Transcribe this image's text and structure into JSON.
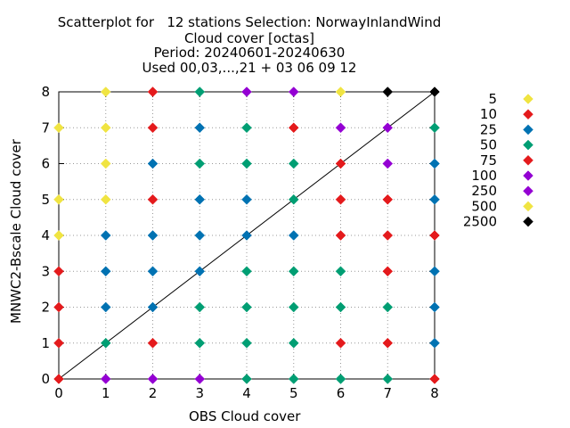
{
  "chart_data": {
    "type": "scatter",
    "title": [
      "Scatterplot for   12 stations Selection: NorwayInlandWind",
      "Cloud cover [octas]",
      "Period: 20240601-20240630",
      "Used 00,03,...,21 + 03 06 09 12"
    ],
    "xlabel": "OBS Cloud cover",
    "ylabel": "MNWC2-Bscale Cloud cover",
    "xlim": [
      0,
      8
    ],
    "ylim": [
      0,
      8
    ],
    "xticks": [
      "0",
      "1",
      "2",
      "3",
      "4",
      "5",
      "6",
      "7",
      "8"
    ],
    "yticks": [
      "0",
      "1",
      "2",
      "3",
      "4",
      "5",
      "6",
      "7",
      "8"
    ],
    "grid": true,
    "diagonal_line": true,
    "legend_position": "right",
    "series": [
      {
        "name": "5",
        "color": "#f0e442",
        "points": [
          [
            0,
            4
          ],
          [
            0,
            5
          ],
          [
            0,
            7
          ],
          [
            1,
            5
          ],
          [
            1,
            6
          ],
          [
            1,
            7
          ],
          [
            1,
            8
          ],
          [
            6,
            8
          ]
        ]
      },
      {
        "name": "10",
        "color": "#e41a1c",
        "points": [
          [
            0,
            1
          ],
          [
            0,
            2
          ],
          [
            0,
            3
          ],
          [
            2,
            1
          ],
          [
            2,
            5
          ],
          [
            2,
            7
          ],
          [
            2,
            8
          ],
          [
            5,
            7
          ],
          [
            6,
            1
          ],
          [
            6,
            4
          ],
          [
            6,
            5
          ],
          [
            7,
            1
          ],
          [
            7,
            3
          ],
          [
            7,
            4
          ],
          [
            7,
            5
          ],
          [
            8,
            4
          ]
        ]
      },
      {
        "name": "25",
        "color": "#0072b2",
        "points": [
          [
            1,
            2
          ],
          [
            1,
            3
          ],
          [
            1,
            4
          ],
          [
            2,
            2
          ],
          [
            2,
            3
          ],
          [
            2,
            4
          ],
          [
            2,
            6
          ],
          [
            3,
            3
          ],
          [
            3,
            4
          ],
          [
            3,
            5
          ],
          [
            3,
            7
          ],
          [
            4,
            4
          ],
          [
            4,
            5
          ],
          [
            5,
            4
          ],
          [
            8,
            1
          ],
          [
            8,
            2
          ],
          [
            8,
            3
          ],
          [
            8,
            5
          ],
          [
            8,
            6
          ]
        ]
      },
      {
        "name": "50",
        "color": "#009e73",
        "points": [
          [
            1,
            1
          ],
          [
            3,
            1
          ],
          [
            3,
            2
          ],
          [
            3,
            6
          ],
          [
            3,
            8
          ],
          [
            4,
            0
          ],
          [
            4,
            1
          ],
          [
            4,
            2
          ],
          [
            4,
            3
          ],
          [
            4,
            6
          ],
          [
            4,
            7
          ],
          [
            5,
            0
          ],
          [
            5,
            1
          ],
          [
            5,
            2
          ],
          [
            5,
            3
          ],
          [
            5,
            5
          ],
          [
            5,
            6
          ],
          [
            6,
            0
          ],
          [
            6,
            2
          ],
          [
            6,
            3
          ],
          [
            7,
            0
          ],
          [
            7,
            2
          ],
          [
            8,
            7
          ]
        ]
      },
      {
        "name": "75",
        "color": "#e41a1c",
        "points": [
          [
            0,
            0
          ],
          [
            6,
            6
          ],
          [
            8,
            0
          ]
        ]
      },
      {
        "name": "100",
        "color": "#9400d3",
        "points": [
          [
            1,
            0
          ],
          [
            2,
            0
          ],
          [
            3,
            0
          ],
          [
            4,
            8
          ],
          [
            5,
            8
          ],
          [
            6,
            7
          ],
          [
            7,
            6
          ],
          [
            7,
            7
          ]
        ]
      },
      {
        "name": "250",
        "color": "#9400d3",
        "points": []
      },
      {
        "name": "500",
        "color": "#f0e442",
        "points": []
      },
      {
        "name": "2500",
        "color": "#000000",
        "points": [
          [
            7,
            8
          ],
          [
            8,
            8
          ]
        ]
      }
    ]
  }
}
